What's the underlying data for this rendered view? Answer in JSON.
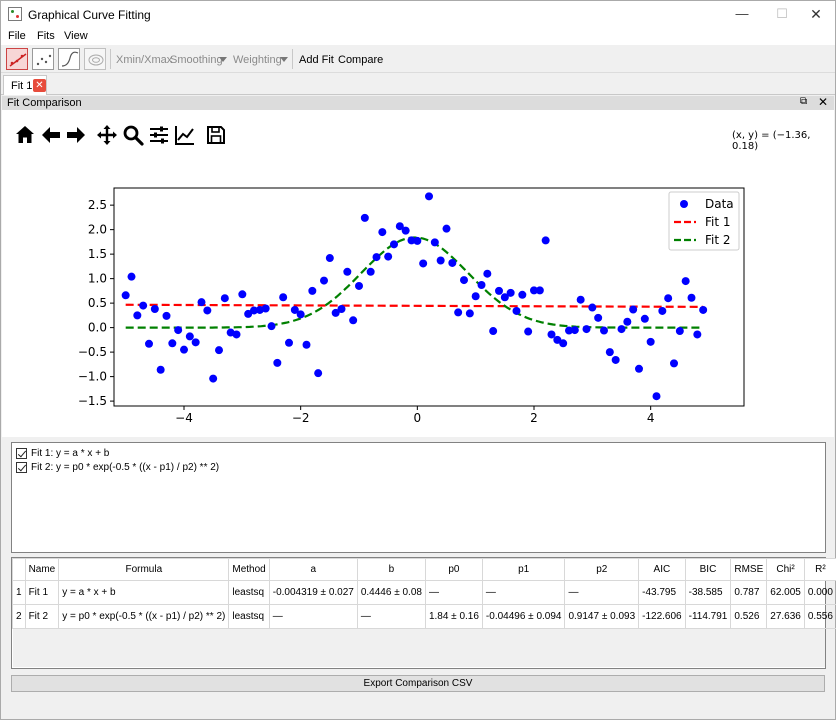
{
  "window": {
    "title": "Graphical Curve Fitting"
  },
  "menu": [
    "File",
    "Fits",
    "View"
  ],
  "toolbar": {
    "xmin_xmax": "Xmin/Xmax",
    "smoothing": "Smoothing",
    "weighting": "Weighting",
    "add_fit": "Add Fit",
    "compare": "Compare"
  },
  "tabs": [
    {
      "label": "Fit 1"
    }
  ],
  "dock": {
    "title": "Fit Comparison"
  },
  "figure": {
    "coords": "(x, y) = (−1.36, 0.18)"
  },
  "chart_data": {
    "type": "scatter",
    "xlim": [
      -5.2,
      5.6
    ],
    "ylim": [
      -1.6,
      2.85
    ],
    "xticks": [
      -4,
      -2,
      0,
      2,
      4
    ],
    "yticks": [
      -1.5,
      -1.0,
      -0.5,
      0.0,
      0.5,
      1.0,
      1.5,
      2.0,
      2.5
    ],
    "xtick_labels": [
      "−4",
      "−2",
      "0",
      "2",
      "4"
    ],
    "ytick_labels": [
      "−1.5",
      "−1.0",
      "−0.5",
      "0.0",
      "0.5",
      "1.0",
      "1.5",
      "2.0",
      "2.5"
    ],
    "legend_position": "top-right",
    "colors": {
      "data": "#0000ff",
      "fit1": "#ff0000",
      "fit2": "#008000"
    },
    "series": [
      {
        "name": "Data",
        "kind": "scatter",
        "x": [
          -5.0,
          -4.9,
          -4.8,
          -4.7,
          -4.6,
          -4.5,
          -4.4,
          -4.3,
          -4.2,
          -4.1,
          -4.0,
          -3.9,
          -3.8,
          -3.7,
          -3.6,
          -3.5,
          -3.4,
          -3.3,
          -3.2,
          -3.1,
          -3.0,
          -2.9,
          -2.8,
          -2.7,
          -2.6,
          -2.5,
          -2.4,
          -2.3,
          -2.2,
          -2.1,
          -2.0,
          -1.9,
          -1.8,
          -1.7,
          -1.6,
          -1.5,
          -1.4,
          -1.3,
          -1.2,
          -1.1,
          -1.0,
          -0.9,
          -0.8,
          -0.7,
          -0.6,
          -0.5,
          -0.4,
          -0.3,
          -0.2,
          -0.1,
          0.0,
          0.1,
          0.2,
          0.3,
          0.4,
          0.5,
          0.6,
          0.7,
          0.8,
          0.9,
          1.0,
          1.1,
          1.2,
          1.3,
          1.4,
          1.5,
          1.6,
          1.7,
          1.8,
          1.9,
          2.0,
          2.1,
          2.2,
          2.3,
          2.4,
          2.5,
          2.6,
          2.7,
          2.8,
          2.9,
          3.0,
          3.1,
          3.2,
          3.3,
          3.4,
          3.5,
          3.6,
          3.7,
          3.8,
          3.9,
          4.0,
          4.1,
          4.2,
          4.3,
          4.4,
          4.5,
          4.6,
          4.7,
          4.8,
          4.9
        ],
        "y": [
          0.66,
          1.04,
          0.25,
          0.45,
          -0.33,
          0.38,
          -0.86,
          0.24,
          -0.32,
          -0.05,
          -0.45,
          -0.18,
          -0.3,
          0.52,
          0.35,
          -1.04,
          -0.46,
          0.6,
          -0.1,
          -0.14,
          0.68,
          0.28,
          0.35,
          0.36,
          0.39,
          0.03,
          -0.72,
          0.62,
          -0.31,
          0.36,
          0.27,
          -0.35,
          0.75,
          -0.93,
          0.96,
          1.42,
          0.3,
          0.38,
          1.14,
          0.15,
          0.85,
          2.24,
          1.14,
          1.44,
          1.95,
          1.45,
          1.7,
          2.07,
          1.98,
          1.78,
          1.77,
          1.31,
          2.68,
          1.74,
          1.37,
          2.02,
          1.32,
          0.31,
          0.97,
          0.29,
          0.64,
          0.87,
          1.1,
          -0.07,
          0.75,
          0.62,
          0.71,
          0.34,
          0.67,
          -0.08,
          0.76,
          0.76,
          1.78,
          -0.14,
          -0.25,
          -0.32,
          -0.06,
          -0.05,
          0.57,
          -0.03,
          0.41,
          0.2,
          -0.06,
          -0.5,
          -0.66,
          -0.03,
          0.12,
          0.37,
          -0.84,
          0.18,
          -0.29,
          -1.4,
          0.34,
          0.6,
          -0.73,
          -0.07,
          0.95,
          0.61,
          -0.14,
          0.36
        ]
      },
      {
        "name": "Fit 1",
        "kind": "line",
        "style": "dashed",
        "formula": "y = a * x + b",
        "params": {
          "a": -0.004319,
          "b": 0.4446
        }
      },
      {
        "name": "Fit 2",
        "kind": "line",
        "style": "dashed",
        "formula": "y = p0 * exp(-0.5 * ((x - p1) / p2) ** 2)",
        "params": {
          "p0": 1.84,
          "p1": -0.04496,
          "p2": 0.9147
        }
      }
    ]
  },
  "fits_list": [
    {
      "label": "Fit 1: y = a * x + b",
      "checked": true
    },
    {
      "label": "Fit 2: y = p0 * exp(-0.5 * ((x - p1) / p2) ** 2)",
      "checked": true
    }
  ],
  "table": {
    "columns": [
      "",
      "Name",
      "Formula",
      "Method",
      "a",
      "b",
      "p0",
      "p1",
      "p2",
      "AIC",
      "BIC",
      "RMSE",
      "Chi²",
      "R²"
    ],
    "rows": [
      [
        "1",
        "Fit 1",
        "y = a * x + b",
        "leastsq",
        "-0.004319 ± 0.027",
        "0.4446 ± 0.08",
        "—",
        "—",
        "—",
        "-43.795",
        "-38.585",
        "0.787",
        "62.005",
        "0.000"
      ],
      [
        "2",
        "Fit 2",
        "y = p0 * exp(-0.5 * ((x - p1) / p2) ** 2)",
        "leastsq",
        "—",
        "—",
        "1.84 ± 0.16",
        "-0.04496 ± 0.094",
        "0.9147 ± 0.093",
        "-122.606",
        "-114.791",
        "0.526",
        "27.636",
        "0.556"
      ]
    ]
  },
  "export_button": "Export Comparison CSV"
}
